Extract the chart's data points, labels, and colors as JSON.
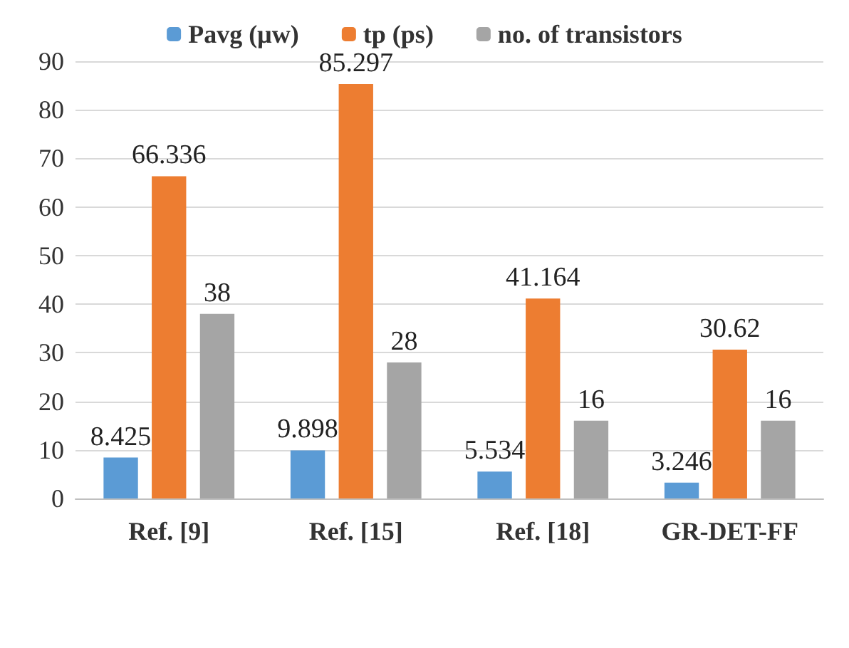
{
  "chart_data": {
    "type": "bar",
    "categories": [
      "Ref. [9]",
      "Ref. [15]",
      "Ref. [18]",
      "GR-DET-FF"
    ],
    "series": [
      {
        "name": "Pavg (µw)",
        "color": "#5b9bd5",
        "values": [
          8.425,
          9.898,
          5.534,
          3.246
        ]
      },
      {
        "name": "tp (ps)",
        "color": "#ed7d31",
        "values": [
          66.336,
          85.297,
          41.164,
          30.62
        ]
      },
      {
        "name": "no. of transistors",
        "color": "#a5a5a5",
        "values": [
          38,
          28,
          16,
          16
        ]
      }
    ],
    "ylim": [
      0,
      90
    ],
    "yticks": [
      0,
      10,
      20,
      30,
      40,
      50,
      60,
      70,
      80,
      90
    ],
    "grid": "y",
    "legend": "top",
    "data_labels": true
  }
}
